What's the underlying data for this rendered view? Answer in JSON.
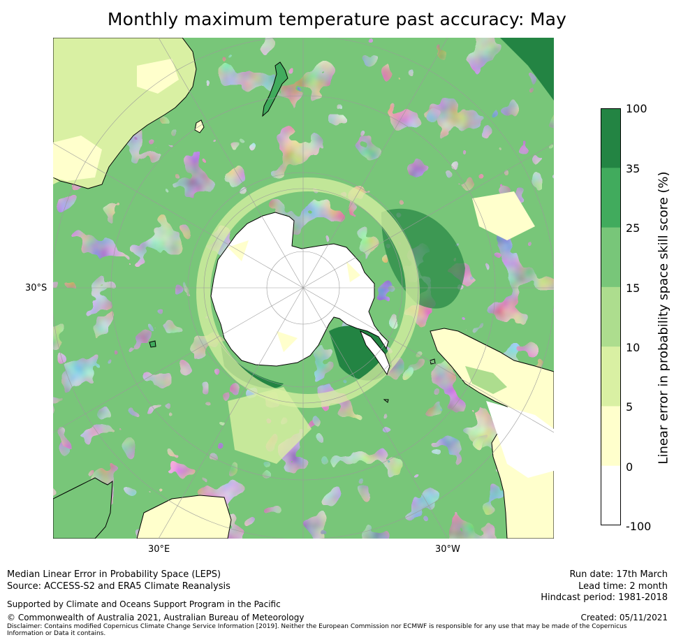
{
  "title": "Monthly maximum temperature past accuracy: May",
  "map": {
    "projection": "south polar stereographic",
    "axis_labels": {
      "left": "30°S",
      "bottom_left": "30°E",
      "bottom_right": "30°W"
    },
    "land_outline_color": "#000000",
    "gridline_color": "#9a9a9a"
  },
  "colorbar": {
    "title": "Linear error in probability space skill score (%)",
    "tick_labels": [
      "100",
      "35",
      "25",
      "15",
      "10",
      "5",
      "0",
      "-100"
    ],
    "bins": [
      {
        "range": [
          35,
          100
        ],
        "color": "#238443"
      },
      {
        "range": [
          25,
          35
        ],
        "color": "#41ab5d"
      },
      {
        "range": [
          15,
          25
        ],
        "color": "#78c679"
      },
      {
        "range": [
          10,
          15
        ],
        "color": "#addd8e"
      },
      {
        "range": [
          5,
          10
        ],
        "color": "#d9f0a3"
      },
      {
        "range": [
          0,
          5
        ],
        "color": "#ffffcc"
      },
      {
        "range": [
          -100,
          0
        ],
        "color": "#ffffff"
      }
    ]
  },
  "footer": {
    "line1": "Median Linear Error in Probability Space (LEPS)",
    "line2": "Source: ACCESS-S2 and ERA5 Climate Reanalysis",
    "supported": "Supported by Climate and Oceans Support Program in the Pacific",
    "copyright": "© Commonwealth of Australia 2021, Australian Bureau of Meteorology",
    "disclaimer": "Disclaimer: Contains modified Copernicus Climate Change Service Information [2019]. Neither the European Commission nor ECMWF is responsible for any use that may be made of the Copernicus Information or Data it contains.",
    "run_date": "Run date: 17th March",
    "lead_time": "Lead time: 2 month",
    "hindcast": "Hindcast period: 1981-2018",
    "created": "Created: 05/11/2021"
  }
}
